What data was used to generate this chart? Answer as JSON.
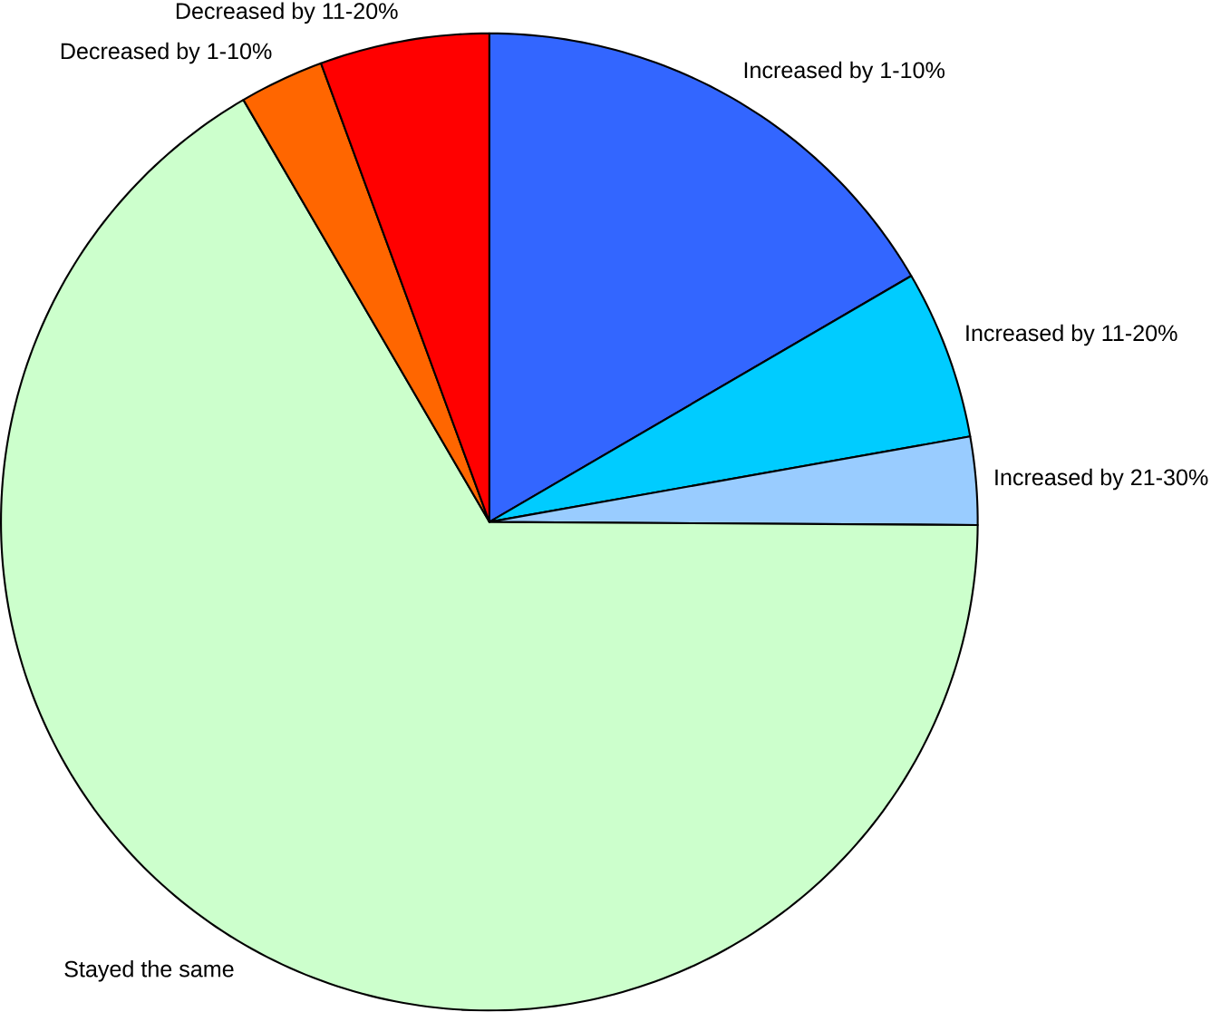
{
  "chart_data": {
    "type": "pie",
    "categories": [
      "Increased by 1-10%",
      "Increased by 11-20%",
      "Increased by 21-30%",
      "Stayed the same",
      "Decreased by 1-10%",
      "Decreased by 11-20%"
    ],
    "values": [
      16.6,
      5.6,
      2.9,
      66.5,
      2.8,
      5.6
    ],
    "colors": [
      "#3366ff",
      "#00ccff",
      "#99ccff",
      "#ccffcc",
      "#ff6600",
      "#ff0000"
    ]
  }
}
